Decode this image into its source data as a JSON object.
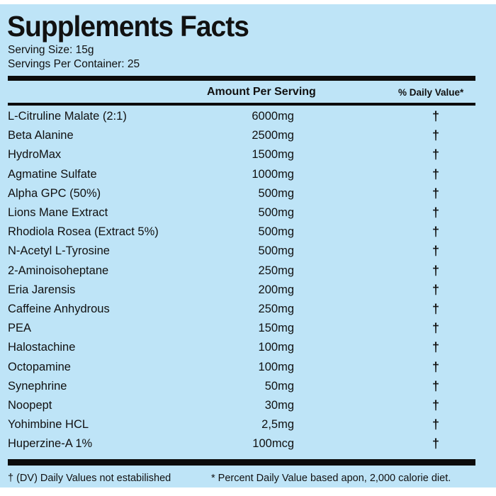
{
  "title": "Supplements Facts",
  "serving_size": "Serving Size: 15g",
  "servings_per_container": "Servings Per Container: 25",
  "header": {
    "amount": "Amount Per Serving",
    "daily_value": "% Daily Value*"
  },
  "rows": [
    {
      "name": "L-Citruline Malate (2:1)",
      "amount": "6000mg",
      "dv": "†"
    },
    {
      "name": "Beta Alanine",
      "amount": "2500mg",
      "dv": "†"
    },
    {
      "name": "HydroMax",
      "amount": "1500mg",
      "dv": "†"
    },
    {
      "name": "Agmatine Sulfate",
      "amount": "1000mg",
      "dv": "†"
    },
    {
      "name": "Alpha GPC (50%)",
      "amount": "500mg",
      "dv": "†"
    },
    {
      "name": "Lions Mane Extract",
      "amount": "500mg",
      "dv": "†"
    },
    {
      "name": "Rhodiola Rosea (Extract 5%)",
      "amount": "500mg",
      "dv": "†"
    },
    {
      "name": "N-Acetyl L-Tyrosine",
      "amount": "500mg",
      "dv": "†"
    },
    {
      "name": "2-Aminoisoheptane",
      "amount": "250mg",
      "dv": "†"
    },
    {
      "name": "Eria Jarensis",
      "amount": "200mg",
      "dv": "†"
    },
    {
      "name": "Caffeine Anhydrous",
      "amount": "250mg",
      "dv": "†"
    },
    {
      "name": "PEA",
      "amount": "150mg",
      "dv": "†"
    },
    {
      "name": "Halostachine",
      "amount": "100mg",
      "dv": "†"
    },
    {
      "name": "Octopamine",
      "amount": "100mg",
      "dv": "†"
    },
    {
      "name": "Synephrine",
      "amount": "50mg",
      "dv": "†"
    },
    {
      "name": "Noopept",
      "amount": "30mg",
      "dv": "†"
    },
    {
      "name": "Yohimbine HCL",
      "amount": "2,5mg",
      "dv": "†"
    },
    {
      "name": "Huperzine-A 1%",
      "amount": "100mcg",
      "dv": "†"
    }
  ],
  "footer": {
    "dv_note": "† (DV) Daily Values not estabilished",
    "percent_note": "* Percent Daily Value based apon, 2,000 calorie diet."
  },
  "colors": {
    "background": "#bee4f7",
    "rule": "#0c0c0c"
  }
}
